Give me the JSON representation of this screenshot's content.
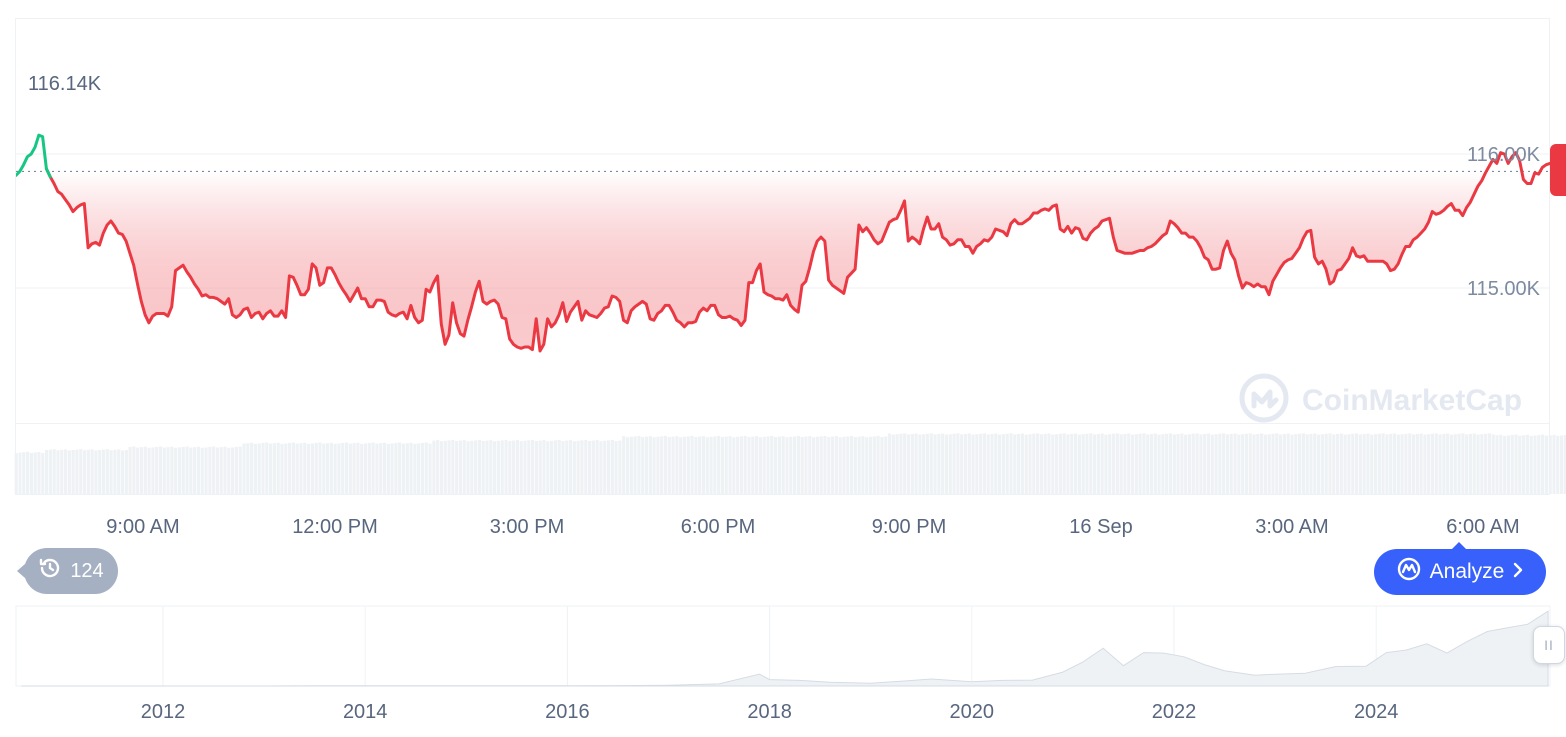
{
  "chart_data": [
    {
      "type": "line",
      "high_label": "116.14K",
      "y_ticks": [
        {
          "value": 116000,
          "label": "116.00K"
        },
        {
          "value": 115000,
          "label": "115.00K"
        }
      ],
      "x_ticks": [
        "9:00 AM",
        "12:00 PM",
        "3:00 PM",
        "6:00 PM",
        "9:00 PM",
        "16 Sep",
        "3:00 AM",
        "6:00 AM"
      ],
      "reference_value": 115870,
      "series": [
        {
          "values": [
            115840,
            115870,
            115920,
            115980,
            116000,
            116050,
            116140,
            116130,
            115890,
            115830,
            115780,
            115720,
            115700,
            115660,
            115620,
            115570,
            115600,
            115620,
            115630,
            115300,
            115330,
            115340,
            115320,
            115410,
            115470,
            115500,
            115460,
            115410,
            115400,
            115350,
            115260,
            115170,
            115030,
            114900,
            114800,
            114740,
            114790,
            114810,
            114810,
            114810,
            114790,
            114860,
            115130,
            115150,
            115170,
            115120,
            115080,
            115030,
            114990,
            114940,
            114950,
            114930,
            114930,
            114920,
            114900,
            114880,
            114920,
            114800,
            114780,
            114800,
            114840,
            114850,
            114780,
            114810,
            114820,
            114770,
            114810,
            114830,
            114790,
            114790,
            114830,
            114780,
            115090,
            115080,
            115020,
            114950,
            114950,
            114990,
            115180,
            115150,
            115020,
            115040,
            115150,
            115150,
            115100,
            115040,
            114990,
            114950,
            114900,
            114950,
            115000,
            114920,
            114920,
            114860,
            114860,
            114910,
            114910,
            114900,
            114820,
            114800,
            114790,
            114810,
            114820,
            114770,
            114870,
            114780,
            114740,
            114760,
            114990,
            114970,
            115040,
            115090,
            114730,
            114580,
            114650,
            114890,
            114740,
            114660,
            114640,
            114760,
            114860,
            114970,
            115050,
            114900,
            114880,
            114900,
            114910,
            114880,
            114780,
            114770,
            114620,
            114580,
            114560,
            114550,
            114560,
            114560,
            114540,
            114770,
            114530,
            114580,
            114770,
            114710,
            114740,
            114800,
            114890,
            114750,
            114820,
            114860,
            114900,
            114760,
            114830,
            114800,
            114790,
            114780,
            114810,
            114850,
            114860,
            114940,
            114930,
            114900,
            114760,
            114740,
            114830,
            114860,
            114880,
            114900,
            114880,
            114770,
            114760,
            114810,
            114830,
            114870,
            114870,
            114820,
            114760,
            114740,
            114710,
            114740,
            114740,
            114750,
            114820,
            114850,
            114830,
            114870,
            114870,
            114800,
            114780,
            114780,
            114790,
            114770,
            114760,
            114720,
            114760,
            115040,
            115040,
            115130,
            115180,
            114970,
            114950,
            114940,
            114920,
            114920,
            114910,
            114950,
            114870,
            114840,
            114820,
            115020,
            115050,
            115150,
            115270,
            115350,
            115380,
            115350,
            115060,
            115020,
            115000,
            114980,
            114960,
            115080,
            115110,
            115140,
            115470,
            115420,
            115450,
            115410,
            115360,
            115330,
            115350,
            115420,
            115490,
            115510,
            115520,
            115580,
            115650,
            115350,
            115380,
            115360,
            115330,
            115440,
            115530,
            115440,
            115440,
            115480,
            115380,
            115360,
            115320,
            115330,
            115360,
            115360,
            115310,
            115310,
            115260,
            115310,
            115330,
            115360,
            115350,
            115380,
            115440,
            115430,
            115420,
            115390,
            115480,
            115510,
            115480,
            115480,
            115500,
            115520,
            115560,
            115560,
            115580,
            115590,
            115580,
            115610,
            115620,
            115440,
            115420,
            115460,
            115410,
            115450,
            115440,
            115370,
            115360,
            115410,
            115440,
            115460,
            115500,
            115510,
            115520,
            115380,
            115280,
            115270,
            115260,
            115260,
            115260,
            115270,
            115280,
            115280,
            115300,
            115310,
            115330,
            115360,
            115390,
            115410,
            115500,
            115480,
            115450,
            115410,
            115410,
            115380,
            115380,
            115350,
            115300,
            115230,
            115210,
            115140,
            115140,
            115150,
            115280,
            115350,
            115260,
            115210,
            115090,
            115000,
            115040,
            115030,
            115010,
            115030,
            115010,
            115010,
            114950,
            115050,
            115100,
            115150,
            115190,
            115210,
            115220,
            115260,
            115300,
            115370,
            115420,
            115430,
            115230,
            115180,
            115200,
            115140,
            115030,
            115050,
            115130,
            115140,
            115180,
            115220,
            115300,
            115240,
            115230,
            115240,
            115200,
            115200,
            115200,
            115200,
            115200,
            115180,
            115130,
            115140,
            115180,
            115250,
            115310,
            115310,
            115360,
            115380,
            115410,
            115440,
            115490,
            115570,
            115550,
            115560,
            115580,
            115610,
            115630,
            115580,
            115580,
            115540,
            115600,
            115640,
            115700,
            115760,
            115800,
            115860,
            115910,
            115960,
            115930,
            116010,
            116000,
            115930,
            115980,
            116010,
            115950,
            115810,
            115780,
            115780,
            115860,
            115850,
            115900,
            115920,
            115930
          ]
        }
      ],
      "volume": [
        {
          "index_from": 0,
          "index_to": 8,
          "level": 0.62
        },
        {
          "index_from": 8,
          "index_to": 30,
          "level": 0.66
        },
        {
          "index_from": 30,
          "index_to": 60,
          "level": 0.7
        },
        {
          "index_from": 60,
          "index_to": 110,
          "level": 0.76
        },
        {
          "index_from": 110,
          "index_to": 160,
          "level": 0.8
        },
        {
          "index_from": 160,
          "index_to": 230,
          "level": 0.86
        },
        {
          "index_from": 230,
          "index_to": 390,
          "level": 0.9
        },
        {
          "index_from": 390,
          "index_to": 420,
          "level": 0.88
        }
      ],
      "colors": {
        "up": "#16c784",
        "down": "#ea3943",
        "fill": "#fde7e8",
        "volume": "#eff2f5",
        "grid": "#eff2f5",
        "axis_text": "#58667e"
      }
    },
    {
      "type": "area",
      "x_ticks": [
        "2012",
        "2014",
        "2016",
        "2018",
        "2020",
        "2022",
        "2024"
      ],
      "x": [
        2010.6,
        2011,
        2011.5,
        2012,
        2012.5,
        2013,
        2013.5,
        2014,
        2014.5,
        2015,
        2015.5,
        2016,
        2016.5,
        2017,
        2017.5,
        2017.9,
        2018,
        2018.3,
        2018.6,
        2019,
        2019.3,
        2019.6,
        2020,
        2020.3,
        2020.6,
        2020.9,
        2021.1,
        2021.3,
        2021.5,
        2021.7,
        2021.9,
        2022.1,
        2022.3,
        2022.5,
        2022.8,
        2023,
        2023.3,
        2023.6,
        2023.9,
        2024.1,
        2024.3,
        2024.5,
        2024.7,
        2024.9,
        2025.1,
        2025.3,
        2025.5,
        2025.7
      ],
      "values": [
        0,
        0,
        0,
        0,
        0,
        0,
        0.3,
        0.5,
        0.4,
        0.3,
        0.3,
        0.5,
        0.7,
        1.2,
        4,
        17,
        12,
        8,
        7,
        4,
        9,
        10,
        8,
        8,
        11,
        20,
        45,
        55,
        38,
        48,
        60,
        42,
        40,
        22,
        20,
        17,
        24,
        28,
        37,
        48,
        65,
        62,
        60,
        66,
        95,
        88,
        107,
        115
      ],
      "ylim": [
        0,
        130
      ],
      "colors": {
        "fill": "#eff2f5",
        "line": "#d6dce5",
        "grid": "#eff2f5"
      }
    }
  ],
  "watermark": {
    "text": "CoinMarketCap",
    "icon": "coinmarketcap-logo-icon"
  },
  "history_badge": {
    "icon": "history-icon",
    "count": "124"
  },
  "analyze_button": {
    "icon": "analyze-icon",
    "label": "Analyze",
    "chevron": "chevron-right-icon"
  },
  "navigator_handle": {
    "icon": "drag-handle-icon",
    "glyph": "II"
  }
}
